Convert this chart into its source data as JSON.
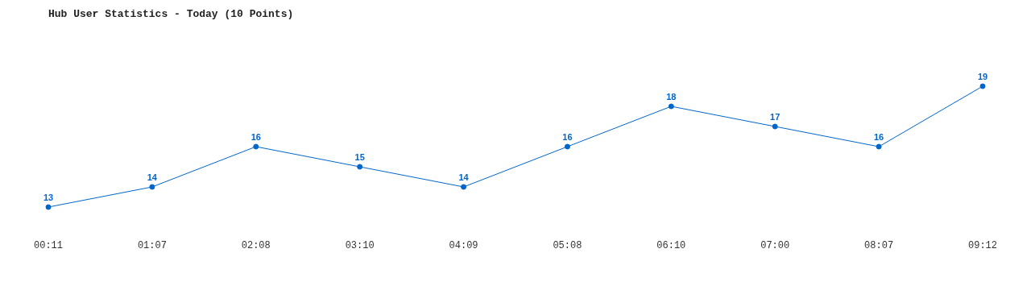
{
  "chart_data": {
    "type": "line",
    "title": "Hub User Statistics - Today (10 Points)",
    "categories": [
      "00:11",
      "01:07",
      "02:08",
      "03:10",
      "04:09",
      "05:08",
      "06:10",
      "07:00",
      "08:07",
      "09:12"
    ],
    "values": [
      13,
      14,
      16,
      15,
      14,
      16,
      18,
      17,
      16,
      19
    ],
    "color": "#0066cc",
    "data_labels": true,
    "marker": "circle",
    "grid": false,
    "legend": false
  }
}
